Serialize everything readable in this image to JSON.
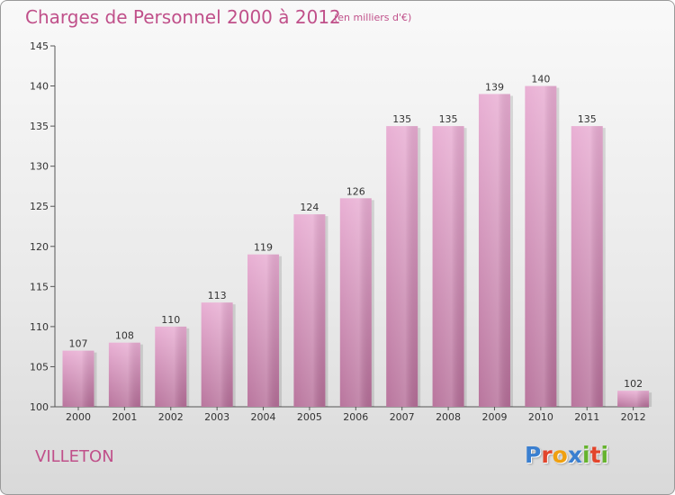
{
  "chart_data": {
    "type": "bar",
    "title": "Charges de Personnel 2000 à 2012",
    "subtitle": "(en milliers d'€)",
    "categories": [
      "2000",
      "2001",
      "2002",
      "2003",
      "2004",
      "2005",
      "2006",
      "2007",
      "2008",
      "2009",
      "2010",
      "2011",
      "2012"
    ],
    "values": [
      107,
      108,
      110,
      113,
      119,
      124,
      126,
      135,
      135,
      139,
      140,
      135,
      102
    ],
    "ylim": [
      100,
      145
    ],
    "yticks": [
      100,
      105,
      110,
      115,
      120,
      125,
      130,
      135,
      140,
      145
    ],
    "grid": false,
    "bar_color": "#d98ab8"
  },
  "commune": "VILLETON",
  "logo": {
    "letters": [
      {
        "ch": "P",
        "color": "#3a7fd0"
      },
      {
        "ch": "r",
        "color": "#e2452c"
      },
      {
        "ch": "o",
        "color": "#f0a010"
      },
      {
        "ch": "x",
        "color": "#3a7fd0"
      },
      {
        "ch": "i",
        "color": "#66b32e"
      },
      {
        "ch": "t",
        "color": "#e2452c"
      },
      {
        "ch": "i",
        "color": "#66b32e"
      }
    ]
  }
}
